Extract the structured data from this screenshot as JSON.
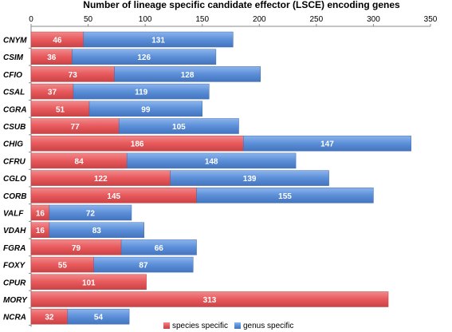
{
  "chart_data": {
    "type": "bar",
    "orientation": "horizontal",
    "stacked": true,
    "title": "Number of lineage specific candidate effector (LSCE) encoding genes",
    "x_axis_position": "top",
    "xlim": [
      0,
      350
    ],
    "xticks": [
      "0",
      "50",
      "100",
      "150",
      "200",
      "250",
      "300",
      "350"
    ],
    "grid": false,
    "legend_position": "bottom",
    "categories": [
      "CNYM",
      "CSIM",
      "CFIO",
      "CSAL",
      "CGRA",
      "CSUB",
      "CHIG",
      "CFRU",
      "CGLO",
      "CORB",
      "VALF",
      "VDAH",
      "FGRA",
      "FOXY",
      "CPUR",
      "MORY",
      "NCRA"
    ],
    "series": [
      {
        "name": "species specific",
        "color": "#e8595c",
        "values": [
          46,
          36,
          73,
          37,
          51,
          77,
          186,
          84,
          122,
          145,
          16,
          16,
          79,
          55,
          101,
          313,
          32
        ]
      },
      {
        "name": "genus specific",
        "color": "#5b8fd8",
        "values": [
          131,
          126,
          128,
          119,
          99,
          105,
          147,
          148,
          139,
          155,
          72,
          83,
          66,
          87,
          0,
          0,
          54
        ]
      }
    ]
  }
}
